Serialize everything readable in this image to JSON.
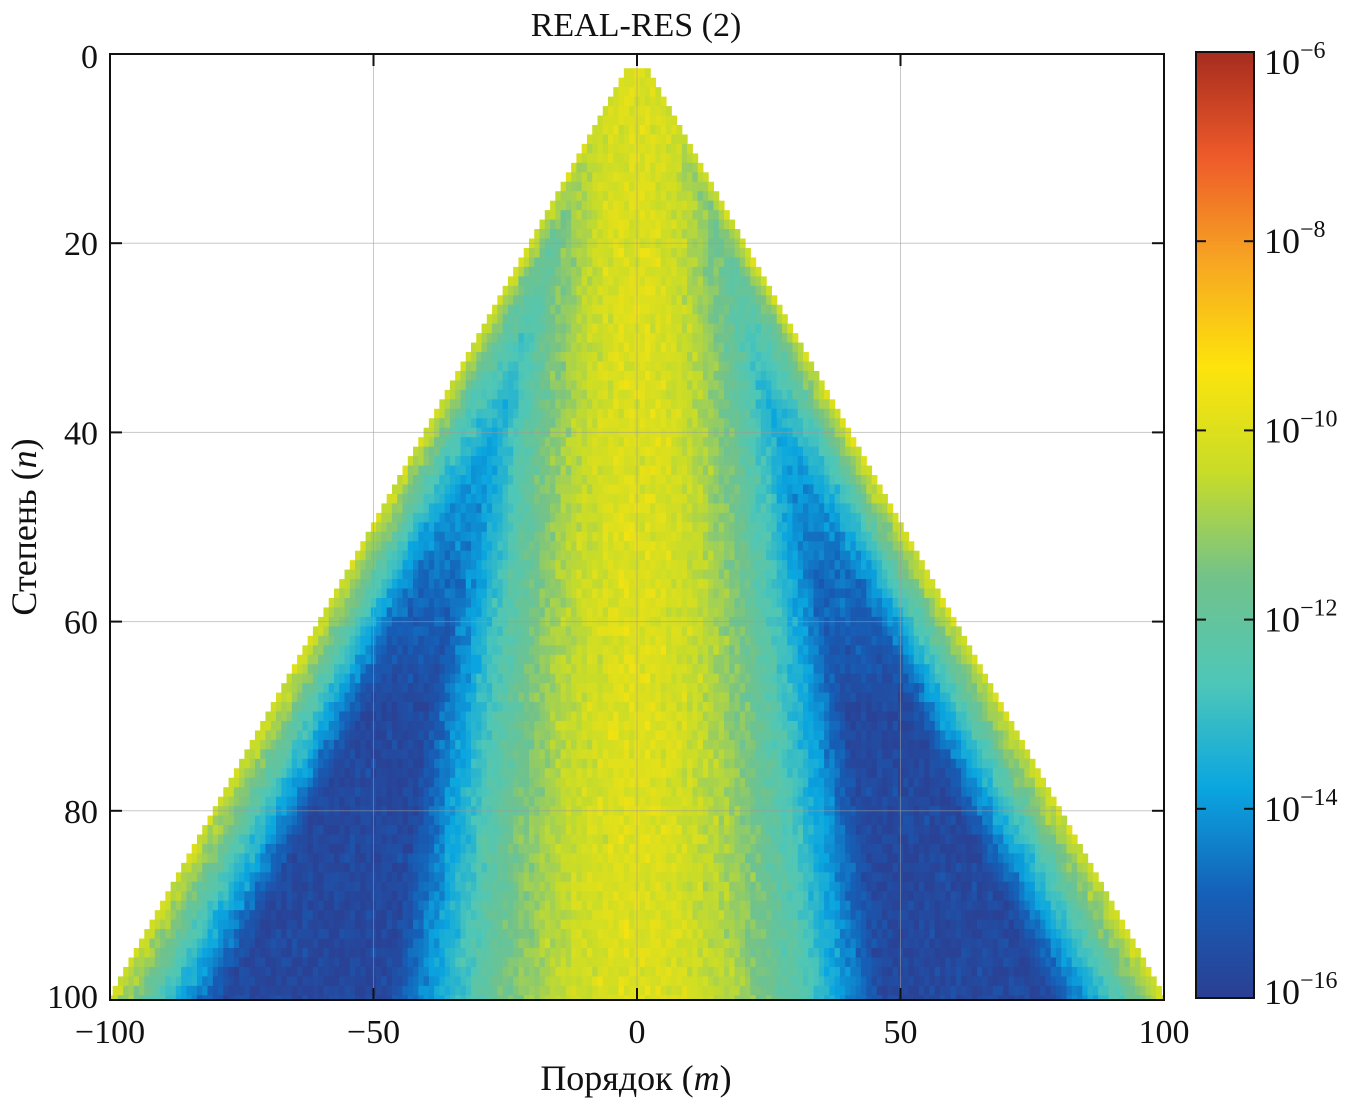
{
  "chart_data": {
    "type": "heatmap",
    "title": "REAL-RES (2)",
    "xlabel_text": "Порядок (",
    "xlabel_var": "m",
    "xlabel_close": ")",
    "ylabel_text": "Степень (",
    "ylabel_var": "n",
    "ylabel_close": ")",
    "x_range": [
      -100,
      100
    ],
    "y_range": [
      0,
      100
    ],
    "y_axis_direction": "down",
    "grid": true,
    "x_ticks": [
      -100,
      -50,
      0,
      50,
      100
    ],
    "x_tick_labels": [
      "−100",
      "−50",
      "0",
      "50",
      "100"
    ],
    "y_ticks": [
      0,
      20,
      40,
      60,
      80,
      100
    ],
    "y_tick_labels": [
      "0",
      "20",
      "40",
      "60",
      "80",
      "100"
    ],
    "colorbar": {
      "scale": "log",
      "range": [
        1e-16,
        1e-06
      ],
      "ticks": [
        {
          "value": -6,
          "base": "10",
          "exp": "−6"
        },
        {
          "value": -8,
          "base": "10",
          "exp": "−8"
        },
        {
          "value": -10,
          "base": "10",
          "exp": "−10"
        },
        {
          "value": -12,
          "base": "10",
          "exp": "−12"
        },
        {
          "value": -14,
          "base": "10",
          "exp": "−14"
        },
        {
          "value": -16,
          "base": "10",
          "exp": "−16"
        }
      ],
      "colormap": [
        "#2b3f93",
        "#1560b8",
        "#0aa6e0",
        "#4ec7b8",
        "#72c28a",
        "#c8dc28",
        "#fde40c",
        "#f7a622",
        "#ee5a2a",
        "#a62c1e"
      ]
    },
    "description_of_field": "triangular region |m| <= n, n from 2 to 100; log10 values near -10 at m=0 and along the edge |m|=n, decreasing to about -15.5 in the interior wedges"
  }
}
